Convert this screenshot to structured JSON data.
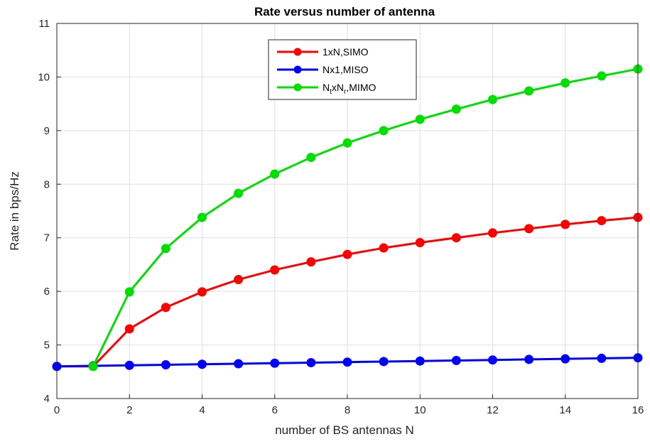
{
  "chart_data": {
    "type": "line",
    "title": "Rate versus number of antenna",
    "xlabel": "number of BS antennas N",
    "ylabel": "Rate in bps/Hz",
    "xlim": [
      0,
      16
    ],
    "ylim": [
      4,
      11
    ],
    "xticks": [
      0,
      2,
      4,
      6,
      8,
      10,
      12,
      14,
      16
    ],
    "yticks": [
      4,
      5,
      6,
      7,
      8,
      9,
      10,
      11
    ],
    "grid": true,
    "legend_position": "top-center",
    "series": [
      {
        "name": "1xN,SIMO",
        "color": "#ff0000",
        "x": [
          0,
          1,
          2,
          3,
          4,
          5,
          6,
          7,
          8,
          9,
          10,
          11,
          12,
          13,
          14,
          15,
          16
        ],
        "values": [
          4.6,
          4.6,
          5.3,
          5.7,
          5.99,
          6.22,
          6.4,
          6.55,
          6.69,
          6.81,
          6.91,
          7.0,
          7.09,
          7.17,
          7.25,
          7.32,
          7.38
        ]
      },
      {
        "name": "Nx1,MISO",
        "color": "#0000ff",
        "x": [
          0,
          1,
          2,
          3,
          4,
          5,
          6,
          7,
          8,
          9,
          10,
          11,
          12,
          13,
          14,
          15,
          16
        ],
        "values": [
          4.6,
          4.61,
          4.62,
          4.63,
          4.64,
          4.65,
          4.66,
          4.67,
          4.68,
          4.69,
          4.7,
          4.71,
          4.72,
          4.73,
          4.74,
          4.75,
          4.76
        ]
      },
      {
        "name": "NtxNr,MIMO",
        "name_parts": [
          "N",
          "t",
          "xN",
          "r",
          ",MIMO"
        ],
        "color": "#00e000",
        "x": [
          1,
          2,
          3,
          4,
          5,
          6,
          7,
          8,
          9,
          10,
          11,
          12,
          13,
          14,
          15,
          16
        ],
        "values": [
          4.6,
          5.99,
          6.8,
          7.38,
          7.83,
          8.19,
          8.5,
          8.77,
          9.0,
          9.21,
          9.4,
          9.58,
          9.74,
          9.89,
          10.02,
          10.15
        ]
      }
    ]
  }
}
